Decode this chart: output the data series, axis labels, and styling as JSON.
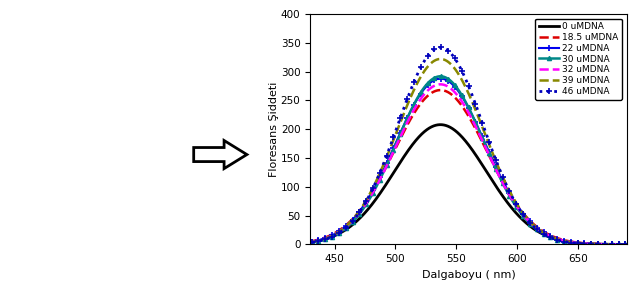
{
  "xlabel": "Dalgaboyu ( nm)",
  "ylabel": "Floresans Şiddeti",
  "xlim": [
    430,
    690
  ],
  "ylim": [
    0,
    400
  ],
  "xticks": [
    450,
    500,
    550,
    600,
    650
  ],
  "yticks": [
    0,
    50,
    100,
    150,
    200,
    250,
    300,
    350,
    400
  ],
  "peak_wavelength": 537,
  "figure_width": 6.33,
  "figure_height": 2.81,
  "series": [
    {
      "label": "0 uMDNA",
      "peak": 208,
      "color": "#000000",
      "linestyle": "-",
      "linewidth": 2.0,
      "marker": "none",
      "sigma": 38
    },
    {
      "label": "18.5 uMDNA",
      "peak": 268,
      "color": "#dd0000",
      "linestyle": "--",
      "linewidth": 1.8,
      "marker": "none",
      "sigma": 38
    },
    {
      "label": "22 uMDNA",
      "peak": 288,
      "color": "#0000ee",
      "linestyle": "-",
      "linewidth": 1.5,
      "marker": "+",
      "sigma": 37
    },
    {
      "label": "30 uMDNA",
      "peak": 292,
      "color": "#008888",
      "linestyle": "-",
      "linewidth": 1.8,
      "marker": "^",
      "sigma": 36
    },
    {
      "label": "32 uMDNA",
      "peak": 278,
      "color": "#ff00ff",
      "linestyle": "--",
      "linewidth": 1.8,
      "marker": "none",
      "sigma": 37
    },
    {
      "label": "39 uMDNA",
      "peak": 322,
      "color": "#888800",
      "linestyle": "--",
      "linewidth": 1.8,
      "marker": "none",
      "sigma": 36
    },
    {
      "label": "46 uMDNA",
      "peak": 342,
      "color": "#0000bb",
      "linestyle": ":",
      "linewidth": 2.0,
      "marker": "+",
      "sigma": 35
    }
  ],
  "legend_fontsize": 6.5,
  "axis_fontsize": 8,
  "tick_fontsize": 7.5
}
